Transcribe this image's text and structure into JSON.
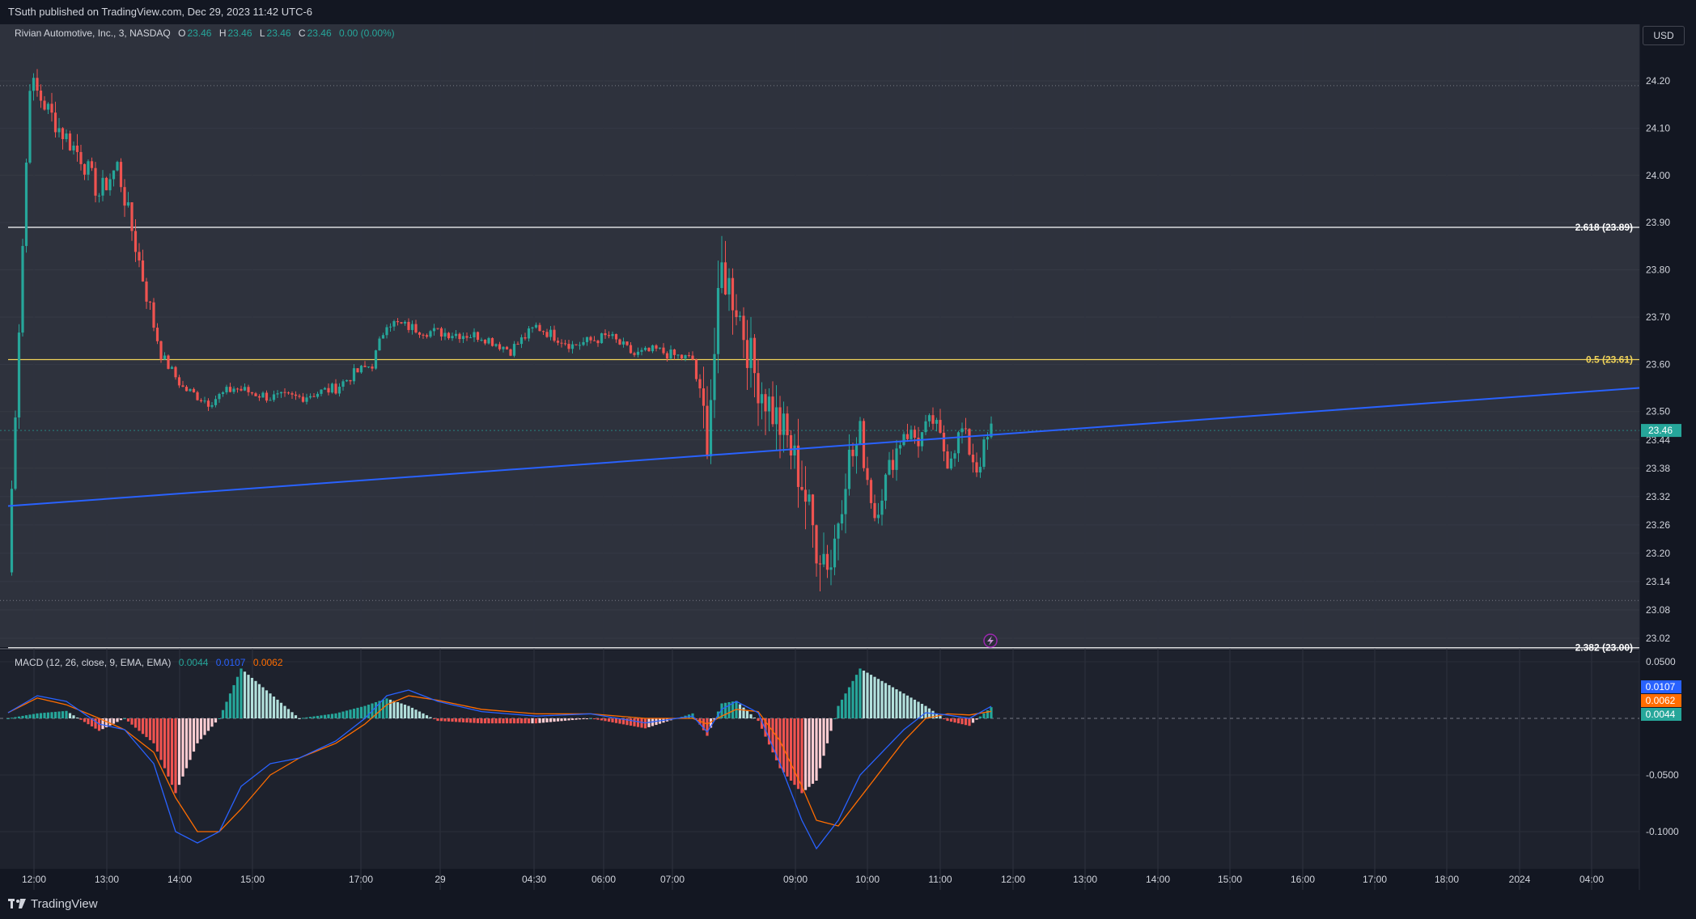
{
  "header": {
    "publish_text": "TSuth published on TradingView.com, Dec 29, 2023 11:42 UTC-6"
  },
  "legend": {
    "symbol": "Rivian Automotive, Inc., 3, NASDAQ",
    "o_label": "O",
    "o_value": "23.46",
    "h_label": "H",
    "h_value": "23.46",
    "l_label": "L",
    "l_value": "23.46",
    "c_label": "C",
    "c_value": "23.46",
    "change": "0.00 (0.00%)"
  },
  "macd_legend": {
    "label": "MACD (12, 26, close, 9, EMA, EMA)",
    "hist_value": "0.0044",
    "macd_value": "0.0107",
    "signal_value": "0.0062"
  },
  "currency": "USD",
  "footer": {
    "brand": "TradingView"
  },
  "colors": {
    "background": "#131722",
    "pane": "#2a2e39",
    "up": "#26a69a",
    "down": "#ef5350",
    "trendline": "#2962ff",
    "fib_white": "#ffffff",
    "fib_yellow": "#f0d35a",
    "macd": "#2962ff",
    "signal": "#ff6d00"
  },
  "chart_data": {
    "type": "candlestick",
    "symbol": "Rivian Automotive, Inc.",
    "interval": "3",
    "exchange": "NASDAQ",
    "y_ticks": [
      "24.20",
      "24.10",
      "24.00",
      "23.90",
      "23.80",
      "23.70",
      "23.60",
      "23.50",
      "23.44",
      "23.38",
      "23.32",
      "23.26",
      "23.20",
      "23.14",
      "23.08",
      "23.02"
    ],
    "x_ticks": [
      "12:00",
      "13:00",
      "14:00",
      "15:00",
      "17:00",
      "29",
      "04:30",
      "06:00",
      "07:00",
      "09:00",
      "10:00",
      "11:00",
      "12:00",
      "13:00",
      "14:00",
      "15:00",
      "16:00",
      "17:00",
      "18:00",
      "2024",
      "04:00"
    ],
    "last_price": "23.46",
    "price_guide_levels": [
      24.19,
      23.1
    ],
    "fib_levels": [
      {
        "label": "2.618 (23.89)",
        "price": 23.89
      },
      {
        "label": "0.5 (23.61)",
        "price": 23.61
      },
      {
        "label": "2.382 (23.00)",
        "price": 23.0
      }
    ],
    "trendline": {
      "start_price": 23.3,
      "end_price": 23.55
    },
    "anchors": [
      [
        0,
        23.16
      ],
      [
        6,
        24.2
      ],
      [
        14,
        24.1
      ],
      [
        20,
        24.04
      ],
      [
        25,
        23.96
      ],
      [
        30,
        24.02
      ],
      [
        38,
        23.75
      ],
      [
        42,
        23.62
      ],
      [
        48,
        23.55
      ],
      [
        55,
        23.52
      ],
      [
        62,
        23.55
      ],
      [
        72,
        23.53
      ],
      [
        80,
        23.53
      ],
      [
        90,
        23.55
      ],
      [
        95,
        23.58
      ],
      [
        100,
        23.6
      ],
      [
        104,
        23.69
      ],
      [
        115,
        23.67
      ],
      [
        130,
        23.66
      ],
      [
        138,
        23.63
      ],
      [
        145,
        23.68
      ],
      [
        155,
        23.64
      ],
      [
        165,
        23.66
      ],
      [
        172,
        23.62
      ],
      [
        178,
        23.63
      ],
      [
        182,
        23.62
      ],
      [
        188,
        23.61
      ],
      [
        192,
        23.45
      ],
      [
        196,
        23.8
      ],
      [
        200,
        23.73
      ],
      [
        205,
        23.58
      ],
      [
        210,
        23.5
      ],
      [
        214,
        23.44
      ],
      [
        218,
        23.35
      ],
      [
        222,
        23.22
      ],
      [
        226,
        23.18
      ],
      [
        230,
        23.38
      ],
      [
        234,
        23.44
      ],
      [
        238,
        23.28
      ],
      [
        242,
        23.38
      ],
      [
        246,
        23.46
      ],
      [
        250,
        23.44
      ],
      [
        254,
        23.48
      ],
      [
        258,
        23.4
      ],
      [
        262,
        23.46
      ],
      [
        266,
        23.38
      ],
      [
        270,
        23.46
      ]
    ],
    "macd": {
      "y_ticks": [
        "0.0500",
        "-0.0500",
        "-0.1000"
      ],
      "macd_last": 0.0107,
      "signal_last": 0.0062,
      "hist_last": 0.0044,
      "macd_anchors": [
        [
          0,
          0.005
        ],
        [
          8,
          0.02
        ],
        [
          16,
          0.015
        ],
        [
          25,
          -0.005
        ],
        [
          32,
          -0.01
        ],
        [
          40,
          -0.04
        ],
        [
          46,
          -0.1
        ],
        [
          52,
          -0.11
        ],
        [
          58,
          -0.1
        ],
        [
          64,
          -0.06
        ],
        [
          72,
          -0.04
        ],
        [
          80,
          -0.035
        ],
        [
          90,
          -0.02
        ],
        [
          98,
          0.0
        ],
        [
          104,
          0.02
        ],
        [
          110,
          0.025
        ],
        [
          118,
          0.015
        ],
        [
          130,
          0.006
        ],
        [
          145,
          0.002
        ],
        [
          160,
          0.004
        ],
        [
          175,
          -0.004
        ],
        [
          188,
          0.002
        ],
        [
          192,
          -0.012
        ],
        [
          196,
          0.008
        ],
        [
          200,
          0.015
        ],
        [
          206,
          0.005
        ],
        [
          212,
          -0.04
        ],
        [
          218,
          -0.09
        ],
        [
          222,
          -0.115
        ],
        [
          228,
          -0.09
        ],
        [
          234,
          -0.05
        ],
        [
          240,
          -0.03
        ],
        [
          246,
          -0.01
        ],
        [
          252,
          0.005
        ],
        [
          258,
          0.003
        ],
        [
          264,
          0.0
        ],
        [
          270,
          0.0107
        ]
      ],
      "signal_anchors": [
        [
          0,
          0.005
        ],
        [
          8,
          0.018
        ],
        [
          16,
          0.012
        ],
        [
          25,
          0.0
        ],
        [
          32,
          -0.01
        ],
        [
          40,
          -0.03
        ],
        [
          46,
          -0.07
        ],
        [
          52,
          -0.1
        ],
        [
          58,
          -0.1
        ],
        [
          64,
          -0.08
        ],
        [
          72,
          -0.05
        ],
        [
          80,
          -0.035
        ],
        [
          90,
          -0.022
        ],
        [
          98,
          -0.005
        ],
        [
          104,
          0.012
        ],
        [
          110,
          0.02
        ],
        [
          118,
          0.016
        ],
        [
          130,
          0.008
        ],
        [
          145,
          0.004
        ],
        [
          160,
          0.004
        ],
        [
          175,
          0.0
        ],
        [
          188,
          0.0
        ],
        [
          192,
          -0.005
        ],
        [
          196,
          0.002
        ],
        [
          200,
          0.008
        ],
        [
          206,
          0.006
        ],
        [
          212,
          -0.02
        ],
        [
          218,
          -0.06
        ],
        [
          222,
          -0.09
        ],
        [
          228,
          -0.095
        ],
        [
          234,
          -0.07
        ],
        [
          240,
          -0.045
        ],
        [
          246,
          -0.02
        ],
        [
          252,
          0.0
        ],
        [
          258,
          0.004
        ],
        [
          264,
          0.003
        ],
        [
          270,
          0.0062
        ]
      ]
    }
  }
}
